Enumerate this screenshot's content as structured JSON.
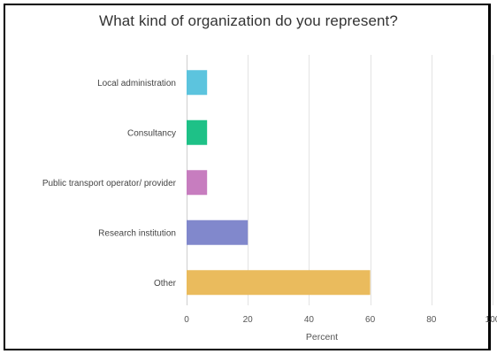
{
  "chart_data": {
    "type": "bar",
    "orientation": "horizontal",
    "title": "What kind of organization do you represent?",
    "xlabel": "Percent",
    "ylabel": "",
    "categories": [
      "Local administration",
      "Consultancy",
      "Public transport operator/ provider",
      "Research institution",
      "Other"
    ],
    "values": [
      6.7,
      6.7,
      6.7,
      20,
      60
    ],
    "colors": [
      "#5cc4de",
      "#1ec187",
      "#c77dbf",
      "#8188cc",
      "#eabb5d"
    ],
    "xlim": [
      0,
      100
    ],
    "xticks": [
      0,
      20,
      40,
      60,
      80,
      100
    ],
    "grid": true,
    "legend": "none"
  }
}
